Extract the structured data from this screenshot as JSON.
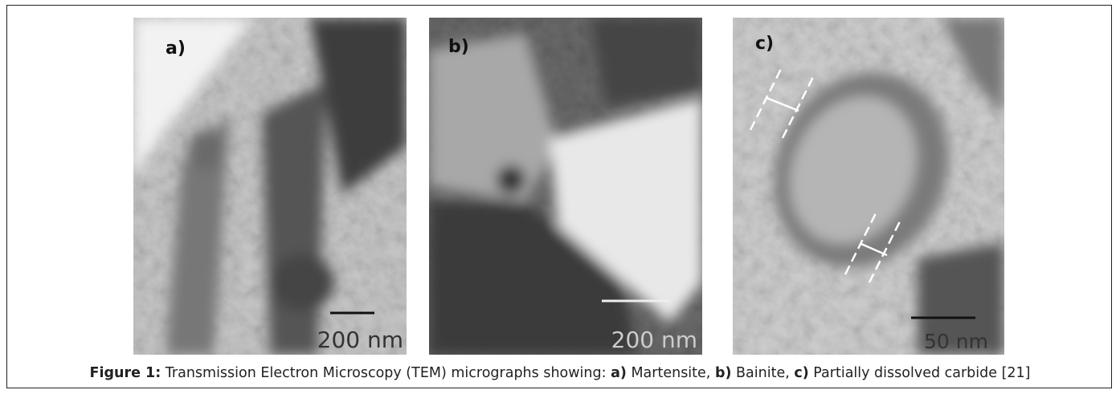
{
  "figure": {
    "panels": [
      {
        "label": "a)",
        "scale": "200 nm"
      },
      {
        "label": "b)",
        "scale": "200 nm"
      },
      {
        "label": "c)",
        "scale": "50 nm"
      }
    ],
    "caption": [
      {
        "text": "Figure 1:",
        "bold": true
      },
      {
        "text": " Transmission Electron Microscopy (TEM) micrographs showing: ",
        "bold": false
      },
      {
        "text": "a)",
        "bold": true
      },
      {
        "text": " Martensite, ",
        "bold": false
      },
      {
        "text": "b)",
        "bold": true
      },
      {
        "text": " Bainite, ",
        "bold": false
      },
      {
        "text": "c)",
        "bold": true
      },
      {
        "text": " Partially dissolved carbide [21]",
        "bold": false
      }
    ]
  }
}
